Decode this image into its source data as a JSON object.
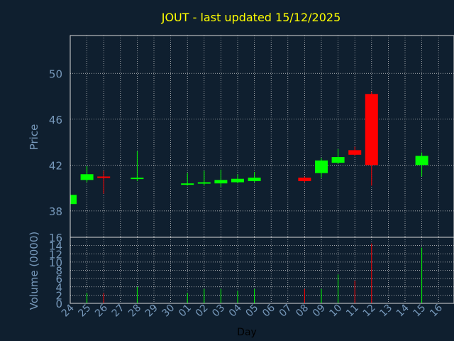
{
  "chart_data": {
    "type": "candlestick",
    "title": "JOUT - last updated 15/12/2025",
    "xlabel": "Day",
    "price_panel": {
      "ylabel": "Price",
      "ylim": [
        35.7,
        53.3
      ],
      "yticks": [
        38,
        42,
        46,
        50
      ],
      "grid": true
    },
    "volume_panel": {
      "ylabel": "Volume (0000)",
      "ylim": [
        0,
        16
      ],
      "yticks": [
        0,
        2,
        4,
        6,
        8,
        10,
        12,
        14,
        16
      ],
      "grid": true
    },
    "x_ticks": [
      "24",
      "25",
      "26",
      "27",
      "28",
      "29",
      "30",
      "01",
      "02",
      "03",
      "04",
      "05",
      "06",
      "07",
      "08",
      "09",
      "10",
      "11",
      "12",
      "13",
      "14",
      "15",
      "16"
    ],
    "colors": {
      "background": "#0f1f2f",
      "up": "#00ff00",
      "down": "#ff0000",
      "title": "#ffff00",
      "axis_text": "#7799bb",
      "grid": "#d8d8d8"
    },
    "candles": [
      {
        "day": "24",
        "open": 38.6,
        "high": 39.4,
        "low": 38.6,
        "close": 39.4,
        "volume": 0
      },
      {
        "day": "25",
        "open": 40.7,
        "high": 41.9,
        "low": 40.5,
        "close": 41.2,
        "volume": 2.5
      },
      {
        "day": "26",
        "open": 41.0,
        "high": 41.5,
        "low": 39.5,
        "close": 40.9,
        "volume": 2.5
      },
      {
        "day": "28",
        "open": 40.8,
        "high": 43.2,
        "low": 40.6,
        "close": 40.9,
        "volume": 4
      },
      {
        "day": "01",
        "open": 40.3,
        "high": 41.3,
        "low": 40.2,
        "close": 40.4,
        "volume": 2.5
      },
      {
        "day": "02",
        "open": 40.4,
        "high": 41.5,
        "low": 40.2,
        "close": 40.5,
        "volume": 3.5
      },
      {
        "day": "03",
        "open": 40.4,
        "high": 41.6,
        "low": 40.1,
        "close": 40.7,
        "volume": 3.5
      },
      {
        "day": "04",
        "open": 40.5,
        "high": 41.2,
        "low": 40.4,
        "close": 40.8,
        "volume": 3
      },
      {
        "day": "05",
        "open": 40.6,
        "high": 41.4,
        "low": 40.5,
        "close": 40.9,
        "volume": 3.5
      },
      {
        "day": "08",
        "open": 40.9,
        "high": 41.0,
        "low": 40.5,
        "close": 40.6,
        "volume": 3.5
      },
      {
        "day": "09",
        "open": 41.3,
        "high": 42.6,
        "low": 40.9,
        "close": 42.4,
        "volume": 3.5
      },
      {
        "day": "10",
        "open": 42.2,
        "high": 43.4,
        "low": 42.1,
        "close": 42.7,
        "volume": 7
      },
      {
        "day": "11",
        "open": 43.3,
        "high": 43.6,
        "low": 42.8,
        "close": 42.9,
        "volume": 5.5
      },
      {
        "day": "12",
        "open": 48.2,
        "high": 48.4,
        "low": 40.2,
        "close": 42.0,
        "volume": 14.5
      },
      {
        "day": "15",
        "open": 42.0,
        "high": 43.1,
        "low": 41.0,
        "close": 42.8,
        "volume": 13.5
      }
    ]
  }
}
